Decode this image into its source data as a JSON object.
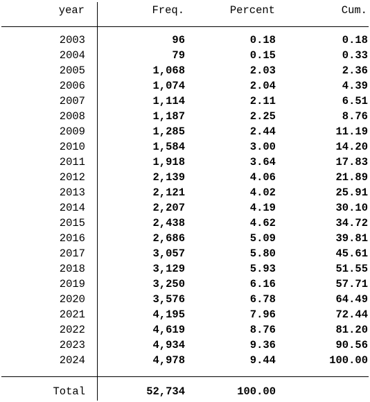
{
  "table": {
    "header": [
      "year",
      "Freq.",
      "Percent",
      "Cum."
    ],
    "rows": [
      [
        "2003",
        "96",
        "0.18",
        "0.18"
      ],
      [
        "2004",
        "79",
        "0.15",
        "0.33"
      ],
      [
        "2005",
        "1,068",
        "2.03",
        "2.36"
      ],
      [
        "2006",
        "1,074",
        "2.04",
        "4.39"
      ],
      [
        "2007",
        "1,114",
        "2.11",
        "6.51"
      ],
      [
        "2008",
        "1,187",
        "2.25",
        "8.76"
      ],
      [
        "2009",
        "1,285",
        "2.44",
        "11.19"
      ],
      [
        "2010",
        "1,584",
        "3.00",
        "14.20"
      ],
      [
        "2011",
        "1,918",
        "3.64",
        "17.83"
      ],
      [
        "2012",
        "2,139",
        "4.06",
        "21.89"
      ],
      [
        "2013",
        "2,121",
        "4.02",
        "25.91"
      ],
      [
        "2014",
        "2,207",
        "4.19",
        "30.10"
      ],
      [
        "2015",
        "2,438",
        "4.62",
        "34.72"
      ],
      [
        "2016",
        "2,686",
        "5.09",
        "39.81"
      ],
      [
        "2017",
        "3,057",
        "5.80",
        "45.61"
      ],
      [
        "2018",
        "3,129",
        "5.93",
        "51.55"
      ],
      [
        "2019",
        "3,250",
        "6.16",
        "57.71"
      ],
      [
        "2020",
        "3,576",
        "6.78",
        "64.49"
      ],
      [
        "2021",
        "4,195",
        "7.96",
        "72.44"
      ],
      [
        "2022",
        "4,619",
        "8.76",
        "81.20"
      ],
      [
        "2023",
        "4,934",
        "9.36",
        "90.56"
      ],
      [
        "2024",
        "4,978",
        "9.44",
        "100.00"
      ]
    ],
    "total": [
      "Total",
      "52,734",
      "100.00"
    ]
  }
}
